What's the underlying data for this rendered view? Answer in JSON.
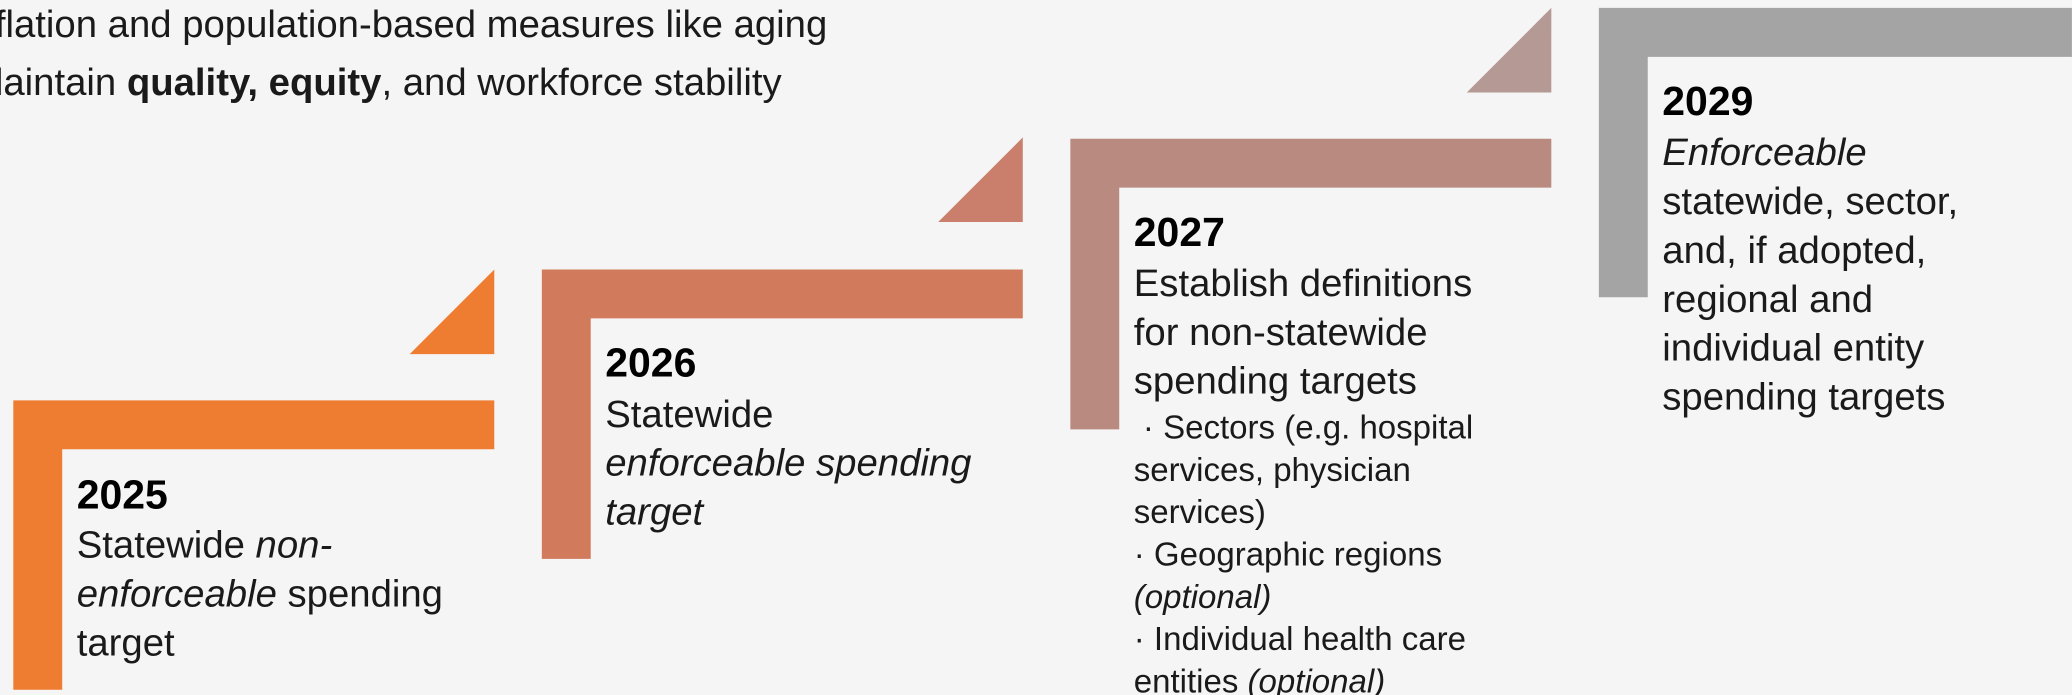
{
  "intro": {
    "line1": "flation and population-based measures like aging",
    "line2": [
      "laintain ",
      "quality, equity",
      ", and workforce stability"
    ]
  },
  "steps": [
    {
      "year": "2025",
      "lines": [
        [
          "Statewide ",
          "non-"
        ],
        [
          "enforceable",
          " spending"
        ],
        [
          "target"
        ]
      ]
    },
    {
      "year": "2026",
      "lines": [
        [
          "Statewide"
        ],
        [
          "enforceable spending"
        ],
        [
          "target"
        ]
      ]
    },
    {
      "year": "2027",
      "lines": [
        [
          "Establish definitions"
        ],
        [
          "for non-statewide"
        ],
        [
          "spending targets"
        ]
      ],
      "bullets": [
        [
          " · Sectors (e.g. hospital"
        ],
        [
          "services, physician"
        ],
        [
          "services)"
        ],
        [
          "· Geographic regions"
        ],
        [
          "(optional)"
        ],
        [
          "· Individual health care"
        ],
        [
          "entities ",
          "(optional)"
        ]
      ]
    },
    {
      "year": "2029",
      "lines": [
        [
          "Enforceable"
        ],
        [
          "statewide, sector,"
        ],
        [
          "and, if adopted,"
        ],
        [
          "regional and"
        ],
        [
          "individual entity"
        ],
        [
          "spending targets"
        ]
      ]
    }
  ]
}
